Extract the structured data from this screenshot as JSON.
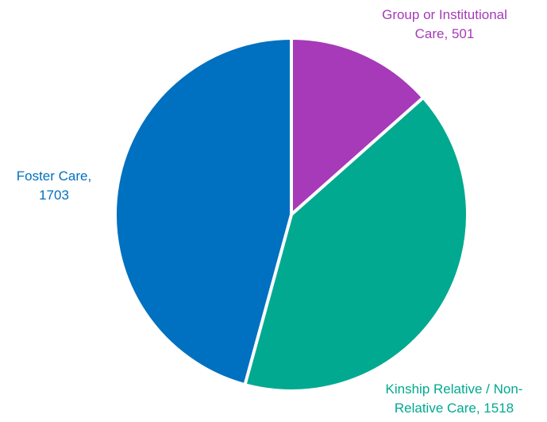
{
  "chart_data": {
    "type": "pie",
    "slices": [
      {
        "category": "Group or Institutional Care",
        "value": 501,
        "color": "#A63AB8",
        "label_lines": [
          "Group or Institutional",
          "Care, 501"
        ]
      },
      {
        "category": "Kinship Relative / Non-Relative Care",
        "value": 1518,
        "color": "#00A98F",
        "label_lines": [
          "Kinship Relative / Non-",
          "Relative Care, 1518"
        ]
      },
      {
        "category": "Foster Care",
        "value": 1703,
        "color": "#0070C0",
        "label_lines": [
          "Foster Care,",
          "1703"
        ]
      }
    ],
    "start_angle": "12 o'clock",
    "direction": "clockwise",
    "legend": "none",
    "data_labels": "category and value, outside"
  }
}
